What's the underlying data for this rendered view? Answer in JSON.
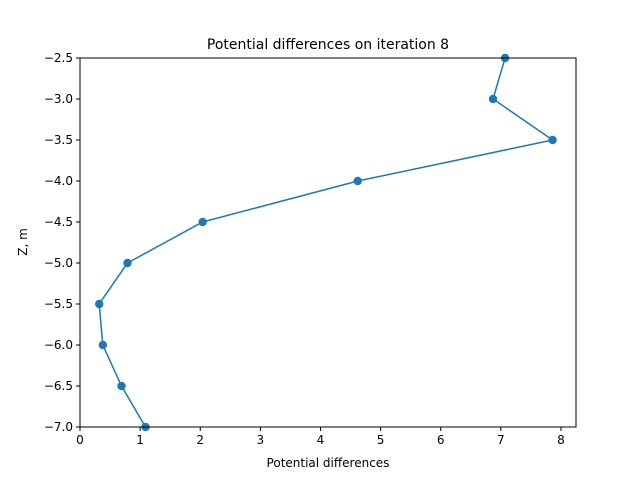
{
  "chart_data": {
    "type": "line",
    "title": "Potential differences on iteration 8",
    "xlabel": "Potential differences",
    "ylabel": "Z, m",
    "xlim": [
      0,
      8.25
    ],
    "ylim": [
      -7.0,
      -2.5
    ],
    "xticks": [
      "0",
      "1",
      "2",
      "3",
      "4",
      "5",
      "6",
      "7",
      "8"
    ],
    "yticks": [
      "−2.5",
      "−3.0",
      "−3.5",
      "−4.0",
      "−4.5",
      "−5.0",
      "−5.5",
      "−6.0",
      "−6.5",
      "−7.0"
    ],
    "grid": false,
    "series": [
      {
        "color": "#1f77b4",
        "marker": "circle",
        "x": [
          7.07,
          6.87,
          7.86,
          4.62,
          2.04,
          0.79,
          0.32,
          0.38,
          0.69,
          1.09
        ],
        "y": [
          -2.5,
          -3.0,
          -3.5,
          -4.0,
          -4.5,
          -5.0,
          -5.5,
          -6.0,
          -6.5,
          -7.0
        ]
      }
    ]
  }
}
